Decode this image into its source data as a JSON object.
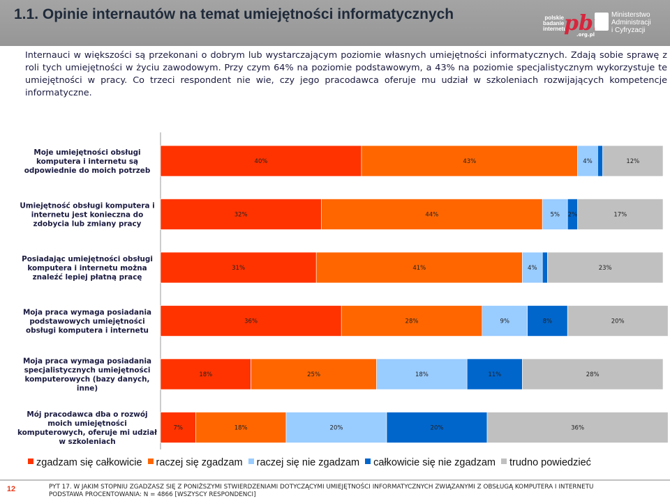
{
  "header": {
    "title": "1.1. Opinie internautów na temat umiejętności informatycznych",
    "pbi_logo_lines": [
      "polskie",
      "badanie",
      "internetu"
    ],
    "pbi_logo_mark": "pbi",
    "pbi_logo_domain": ".org.pl",
    "gov_logo_lines": [
      "Ministerstwo",
      "Administracji",
      "i Cyfryzacji"
    ]
  },
  "intro_text": "Internauci w większości są przekonani o dobrym lub wystarczającym poziomie własnych umiejętności informatycznych. Zdają sobie sprawę z roli tych umiejętności w życiu zawodowym. Przy czym 64% na poziomie podstawowym, a 43% na poziomie specjalistycznym wykorzystuje te umiejętności w pracy. Co trzeci respondent nie wie, czy jego pracodawca oferuje mu udział w szkoleniach rozwijających kompetencje informatyczne.",
  "chart_data": {
    "type": "bar",
    "orientation": "horizontal",
    "stacked": true,
    "categories": [
      "Moje umiejętności obsługi komputera i internetu są odpowiednie do moich potrzeb",
      "Umiejętność obsługi komputera i internetu jest konieczna do zdobycia lub zmiany pracy",
      "Posiadając umiejętności obsługi komputera i internetu można znaleźć lepiej płatną pracę",
      "Moja praca wymaga posiadania podstawowych umiejętności obsługi komputera i internetu",
      "Moja praca wymaga posiadania specjalistycznych umiejętności komputerowych (bazy danych, inne)",
      "Mój pracodawca dba o rozwój moich umiejętności komputerowych, oferuje mi udział w szkoleniach"
    ],
    "category_lines": [
      [
        "Moje umiejętności obsługi",
        "komputera i internetu są",
        "odpowiednie do moich potrzeb"
      ],
      [
        "Umiejętność obsługi komputera i",
        "internetu jest konieczna do",
        "zdobycia lub zmiany pracy"
      ],
      [
        "Posiadając umiejętności obsługi",
        "komputera i internetu można",
        "znaleźć lepiej płatną pracę"
      ],
      [
        "Moja praca wymaga posiadania",
        "podstawowych umiejętności",
        "obsługi komputera i internetu"
      ],
      [
        "Moja praca wymaga posiadania",
        "specjalistycznych umiejętności",
        "komputerowych (bazy danych,",
        "inne)"
      ],
      [
        "Mój pracodawca dba o rozwój",
        "moich umiejętności",
        "komputerowych, oferuje mi udział",
        "w szkoleniach"
      ]
    ],
    "series": [
      {
        "name": "zgadzam się całkowicie",
        "color": "#ff3300",
        "values": [
          40,
          32,
          31,
          36,
          18,
          7
        ]
      },
      {
        "name": "raczej się zgadzam",
        "color": "#ff6600",
        "values": [
          43,
          44,
          41,
          28,
          25,
          18
        ]
      },
      {
        "name": "raczej się nie zgadzam",
        "color": "#99ccff",
        "values": [
          4,
          5,
          4,
          9,
          18,
          20
        ]
      },
      {
        "name": "całkowicie się nie zgadzam",
        "color": "#0066cc",
        "values": [
          1,
          2,
          1,
          8,
          11,
          20
        ]
      },
      {
        "name": "trudno powiedzieć",
        "color": "#c0c0c0",
        "values": [
          12,
          17,
          23,
          20,
          28,
          36
        ]
      }
    ],
    "value_suffix": "%",
    "xlim": [
      0,
      100
    ],
    "legend_position": "bottom",
    "grid": false
  },
  "footer": {
    "page_number": "12",
    "note_line1": "PYT 17. W JAKIM STOPNIU ZGADZASZ SIĘ Z PONIŻSZYMI STWIERDZENIAMI DOTYCZĄCYMI UMIEJĘTNOŚCI INFORMATYCZNYCH ZWIĄZANYMI Z OBSŁUGĄ KOMPUTERA I INTERNETU",
    "note_line2": "PODSTAWA PROCENTOWANIA: N = 4866 [WSZYSCY RESPONDENCI]"
  }
}
